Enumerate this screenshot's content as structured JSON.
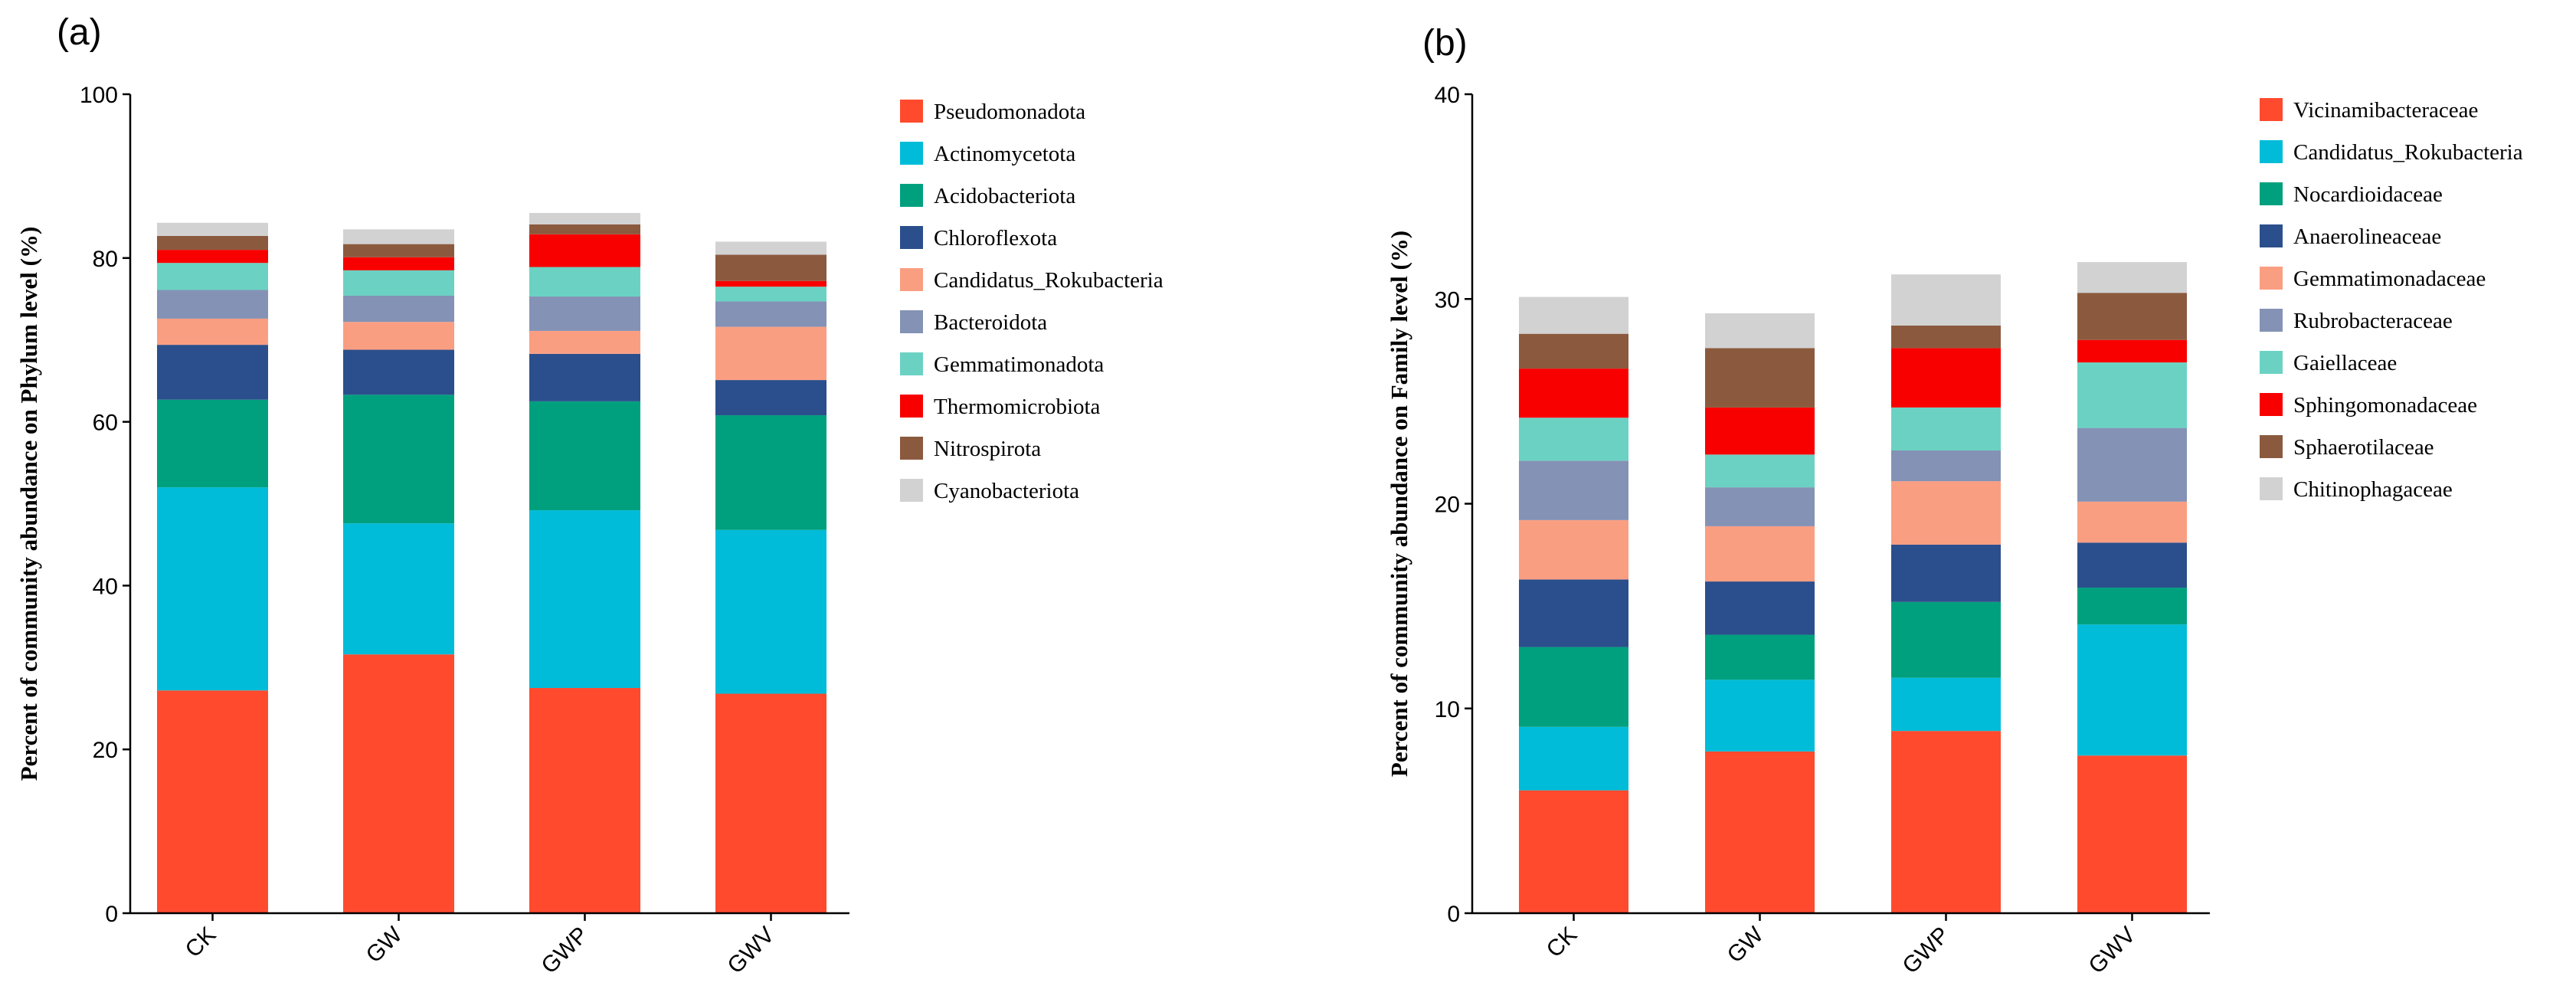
{
  "chart_data": [
    {
      "type": "bar",
      "stacked": true,
      "panel_label": "(a)",
      "title": "",
      "xlabel": "",
      "ylabel": "Percent of community abundance on Phylum level (%)",
      "ylim": [
        0,
        100
      ],
      "yticks": [
        0,
        20,
        40,
        60,
        80,
        100
      ],
      "categories": [
        "CK",
        "GW",
        "GWP",
        "GWV"
      ],
      "legend_position": "right",
      "series": [
        {
          "name": "Pseudomonadota",
          "color": "#FF4A2E",
          "values": [
            27.2,
            31.6,
            27.5,
            26.8
          ]
        },
        {
          "name": "Actinomycetota",
          "color": "#00BCD8",
          "values": [
            24.8,
            16.0,
            21.7,
            20.0
          ]
        },
        {
          "name": "Acidobacteriota",
          "color": "#00A07E",
          "values": [
            10.7,
            15.7,
            13.3,
            14.0
          ]
        },
        {
          "name": "Chloroflexota",
          "color": "#2B4F8C",
          "values": [
            6.7,
            5.5,
            5.8,
            4.3
          ]
        },
        {
          "name": "Candidatus_Rokubacteria",
          "color": "#FA9E82",
          "values": [
            3.2,
            3.4,
            2.8,
            6.5
          ]
        },
        {
          "name": "Bacteroidota",
          "color": "#8492B5",
          "values": [
            3.5,
            3.2,
            4.2,
            3.1
          ]
        },
        {
          "name": "Gemmatimonadota",
          "color": "#6BD2C3",
          "values": [
            3.3,
            3.1,
            3.6,
            1.8
          ]
        },
        {
          "name": "Thermomicrobiota",
          "color": "#F80000",
          "values": [
            1.6,
            1.6,
            4.0,
            0.7
          ]
        },
        {
          "name": "Nitrospirota",
          "color": "#8B5A3E",
          "values": [
            1.7,
            1.6,
            1.2,
            3.2
          ]
        },
        {
          "name": "Cyanobacteriota",
          "color": "#D2D2D2",
          "values": [
            1.6,
            1.8,
            1.4,
            1.6
          ]
        }
      ]
    },
    {
      "type": "bar",
      "stacked": true,
      "panel_label": "(b)",
      "title": "",
      "xlabel": "",
      "ylabel": "Percent of community abundance on Family level (%)",
      "ylim": [
        0,
        40
      ],
      "yticks": [
        0,
        10,
        20,
        30,
        40
      ],
      "categories": [
        "CK",
        "GW",
        "GWP",
        "GWV"
      ],
      "legend_position": "right",
      "series": [
        {
          "name": "Vicinamibacteraceae",
          "color": "#FF4A2E",
          "values": [
            6.0,
            7.9,
            8.9,
            7.7
          ]
        },
        {
          "name": "Candidatus_Rokubacteria",
          "color": "#00BCD8",
          "values": [
            3.1,
            3.5,
            2.6,
            6.4
          ]
        },
        {
          "name": "Nocardioidaceae",
          "color": "#00A07E",
          "values": [
            3.9,
            2.2,
            3.7,
            1.8
          ]
        },
        {
          "name": "Anaerolineaceae",
          "color": "#2B4F8C",
          "values": [
            3.3,
            2.6,
            2.8,
            2.2
          ]
        },
        {
          "name": "Gemmatimonadaceae",
          "color": "#FA9E82",
          "values": [
            2.9,
            2.7,
            3.1,
            2.0
          ]
        },
        {
          "name": "Rubrobacteraceae",
          "color": "#8492B5",
          "values": [
            2.9,
            1.9,
            1.5,
            3.6
          ]
        },
        {
          "name": "Gaiellaceae",
          "color": "#6BD2C3",
          "values": [
            2.1,
            1.6,
            2.1,
            3.2
          ]
        },
        {
          "name": "Sphingomonadaceae",
          "color": "#F80000",
          "values": [
            2.4,
            2.3,
            2.9,
            1.1
          ]
        },
        {
          "name": "Sphaerotilaceae",
          "color": "#8B5A3E",
          "values": [
            1.7,
            2.9,
            1.1,
            2.3
          ]
        },
        {
          "name": "Chitinophagaceae",
          "color": "#D2D2D2",
          "values": [
            1.8,
            1.7,
            2.5,
            1.5
          ]
        }
      ]
    }
  ]
}
